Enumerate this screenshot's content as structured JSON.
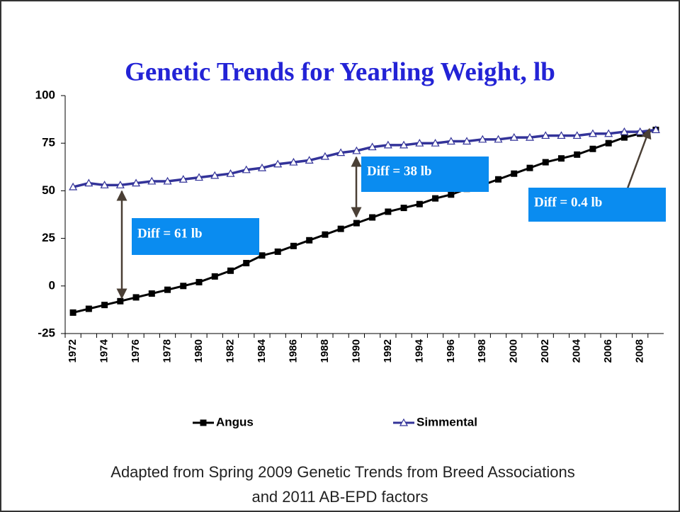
{
  "chart_data": {
    "type": "line",
    "title": "Genetic Trends for Yearling Weight, lb",
    "categories": [
      "1972",
      null,
      "1974",
      null,
      "1976",
      null,
      "1978",
      null,
      "1980",
      null,
      "1982",
      null,
      "1984",
      null,
      "1986",
      null,
      "1988",
      null,
      "1990",
      null,
      "1992",
      null,
      "1994",
      null,
      "1996",
      null,
      "1998",
      null,
      "2000",
      null,
      "2002",
      null,
      "2004",
      null,
      "2006",
      null,
      "2008",
      null
    ],
    "series": [
      {
        "name": "Angus",
        "color": "#000000",
        "values": [
          -14,
          -12,
          -10,
          -8,
          -6,
          -4,
          -2,
          0,
          2,
          5,
          8,
          12,
          16,
          18,
          21,
          24,
          27,
          30,
          33,
          36,
          39,
          41,
          43,
          46,
          48,
          51,
          53,
          56,
          59,
          62,
          65,
          67,
          69,
          72,
          75,
          78,
          80,
          82
        ]
      },
      {
        "name": "Simmental",
        "color": "#333399",
        "values": [
          52,
          54,
          53,
          53,
          54,
          55,
          55,
          56,
          57,
          58,
          59,
          61,
          62,
          64,
          65,
          66,
          68,
          70,
          71,
          73,
          74,
          74,
          75,
          75,
          76,
          76,
          77,
          77,
          78,
          78,
          79,
          79,
          79,
          80,
          80,
          81,
          81,
          82
        ]
      }
    ],
    "ylim": [
      -25,
      100
    ],
    "yticks": [
      -25,
      0,
      25,
      50,
      75,
      100
    ],
    "legend": "bottom",
    "annotations": [
      "Diff = 61 lb",
      "Diff = 38 lb",
      "Diff = 0.4 lb"
    ],
    "annotation_color": "#0a8cf0",
    "footnote": [
      "Adapted from Spring 2009 Genetic Trends from Breed Associations",
      "and 2011 AB-EPD factors"
    ]
  }
}
